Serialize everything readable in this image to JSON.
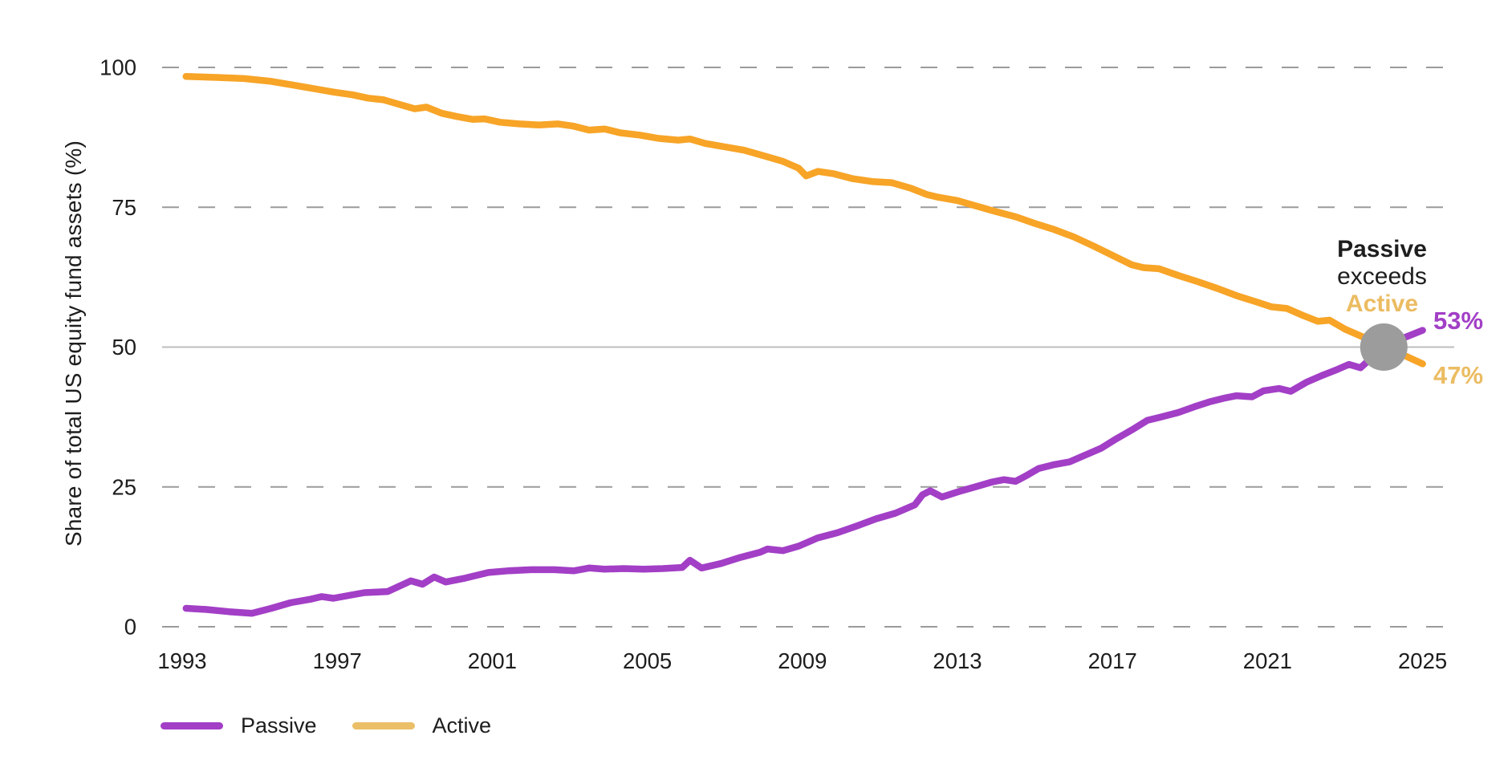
{
  "chart_data": {
    "type": "line",
    "title": "",
    "xlabel": "",
    "ylabel": "Share of total US equity fund assets (%)",
    "xlim": [
      1992.5,
      2025.8
    ],
    "ylim": [
      0,
      100
    ],
    "x_ticks": [
      "1993",
      "1997",
      "2001",
      "2005",
      "2009",
      "2013",
      "2017",
      "2021",
      "2025"
    ],
    "x_tick_years": [
      1993,
      1997,
      2001,
      2005,
      2009,
      2013,
      2017,
      2021,
      2025
    ],
    "y_ticks": [
      0,
      25,
      50,
      75,
      100
    ],
    "grid": "horizontal dashed at 0/25/75/100, solid light at 50",
    "legend_position": "bottom-left",
    "colors": {
      "passive_line": "#A23FC6",
      "active_line": "#F7A427",
      "active_tan": "#EBBC62",
      "grid_dashed": "#9B9B9B",
      "grid_mid_solid": "#BDBDBD",
      "axis_text": "#1d1d1d",
      "marker_gray": "#9C9C9C",
      "background": "#FFFFFF"
    },
    "series": [
      {
        "name": "Active",
        "color": "#F7A427",
        "points": [
          [
            1993.1,
            98.4
          ],
          [
            1993.9,
            98.2
          ],
          [
            1994.6,
            98.0
          ],
          [
            1995.3,
            97.5
          ],
          [
            1995.9,
            96.8
          ],
          [
            1996.4,
            96.2
          ],
          [
            1996.9,
            95.6
          ],
          [
            1997.4,
            95.1
          ],
          [
            1997.8,
            94.5
          ],
          [
            1998.2,
            94.2
          ],
          [
            1998.7,
            93.2
          ],
          [
            1999.0,
            92.6
          ],
          [
            1999.3,
            92.9
          ],
          [
            1999.7,
            91.8
          ],
          [
            2000.1,
            91.2
          ],
          [
            2000.5,
            90.7
          ],
          [
            2000.8,
            90.8
          ],
          [
            2001.2,
            90.2
          ],
          [
            2001.7,
            89.9
          ],
          [
            2002.2,
            89.7
          ],
          [
            2002.7,
            89.9
          ],
          [
            2003.1,
            89.5
          ],
          [
            2003.5,
            88.8
          ],
          [
            2003.9,
            89.0
          ],
          [
            2004.3,
            88.3
          ],
          [
            2004.8,
            87.9
          ],
          [
            2005.3,
            87.3
          ],
          [
            2005.8,
            87.0
          ],
          [
            2006.1,
            87.2
          ],
          [
            2006.5,
            86.4
          ],
          [
            2007.0,
            85.8
          ],
          [
            2007.5,
            85.2
          ],
          [
            2008.0,
            84.2
          ],
          [
            2008.5,
            83.2
          ],
          [
            2008.9,
            82.0
          ],
          [
            2009.1,
            80.6
          ],
          [
            2009.4,
            81.4
          ],
          [
            2009.8,
            81.0
          ],
          [
            2010.3,
            80.1
          ],
          [
            2010.8,
            79.6
          ],
          [
            2011.3,
            79.4
          ],
          [
            2011.8,
            78.4
          ],
          [
            2012.2,
            77.3
          ],
          [
            2012.5,
            76.8
          ],
          [
            2013.0,
            76.2
          ],
          [
            2013.5,
            75.2
          ],
          [
            2014.0,
            74.2
          ],
          [
            2014.5,
            73.3
          ],
          [
            2015.0,
            72.1
          ],
          [
            2015.5,
            71.0
          ],
          [
            2016.0,
            69.7
          ],
          [
            2016.5,
            68.1
          ],
          [
            2017.0,
            66.4
          ],
          [
            2017.5,
            64.7
          ],
          [
            2017.8,
            64.2
          ],
          [
            2018.2,
            64.0
          ],
          [
            2018.7,
            62.8
          ],
          [
            2019.2,
            61.7
          ],
          [
            2019.7,
            60.5
          ],
          [
            2020.2,
            59.2
          ],
          [
            2020.7,
            58.1
          ],
          [
            2021.1,
            57.2
          ],
          [
            2021.5,
            56.9
          ],
          [
            2021.9,
            55.7
          ],
          [
            2022.3,
            54.6
          ],
          [
            2022.6,
            54.8
          ],
          [
            2023.0,
            53.2
          ],
          [
            2023.5,
            51.7
          ],
          [
            2024.0,
            50.0
          ],
          [
            2024.5,
            48.6
          ],
          [
            2025.0,
            47.0
          ]
        ]
      },
      {
        "name": "Passive",
        "color": "#A23FC6",
        "points": [
          [
            1993.1,
            3.3
          ],
          [
            1993.6,
            3.1
          ],
          [
            1994.2,
            2.7
          ],
          [
            1994.8,
            2.4
          ],
          [
            1995.3,
            3.3
          ],
          [
            1995.8,
            4.3
          ],
          [
            1996.3,
            4.9
          ],
          [
            1996.6,
            5.4
          ],
          [
            1996.9,
            5.1
          ],
          [
            1997.3,
            5.6
          ],
          [
            1997.7,
            6.1
          ],
          [
            1998.3,
            6.3
          ],
          [
            1998.9,
            8.2
          ],
          [
            1999.2,
            7.6
          ],
          [
            1999.5,
            8.9
          ],
          [
            1999.8,
            8.0
          ],
          [
            2000.3,
            8.7
          ],
          [
            2000.9,
            9.7
          ],
          [
            2001.4,
            10.0
          ],
          [
            2002.0,
            10.2
          ],
          [
            2002.6,
            10.2
          ],
          [
            2003.1,
            10.0
          ],
          [
            2003.5,
            10.5
          ],
          [
            2003.9,
            10.3
          ],
          [
            2004.4,
            10.4
          ],
          [
            2004.9,
            10.3
          ],
          [
            2005.4,
            10.4
          ],
          [
            2005.9,
            10.6
          ],
          [
            2006.1,
            11.9
          ],
          [
            2006.4,
            10.5
          ],
          [
            2006.9,
            11.3
          ],
          [
            2007.4,
            12.4
          ],
          [
            2007.9,
            13.3
          ],
          [
            2008.1,
            13.9
          ],
          [
            2008.5,
            13.6
          ],
          [
            2008.9,
            14.4
          ],
          [
            2009.4,
            15.9
          ],
          [
            2009.9,
            16.8
          ],
          [
            2010.4,
            18.0
          ],
          [
            2010.9,
            19.3
          ],
          [
            2011.4,
            20.3
          ],
          [
            2011.9,
            21.8
          ],
          [
            2012.1,
            23.6
          ],
          [
            2012.3,
            24.3
          ],
          [
            2012.6,
            23.2
          ],
          [
            2013.1,
            24.3
          ],
          [
            2013.5,
            25.1
          ],
          [
            2013.9,
            25.9
          ],
          [
            2014.2,
            26.3
          ],
          [
            2014.5,
            26.0
          ],
          [
            2014.8,
            27.1
          ],
          [
            2015.1,
            28.3
          ],
          [
            2015.5,
            29.0
          ],
          [
            2015.9,
            29.5
          ],
          [
            2016.3,
            30.7
          ],
          [
            2016.7,
            31.9
          ],
          [
            2017.1,
            33.6
          ],
          [
            2017.5,
            35.2
          ],
          [
            2017.9,
            36.9
          ],
          [
            2018.2,
            37.4
          ],
          [
            2018.7,
            38.3
          ],
          [
            2019.1,
            39.3
          ],
          [
            2019.5,
            40.2
          ],
          [
            2019.9,
            40.9
          ],
          [
            2020.2,
            41.3
          ],
          [
            2020.6,
            41.1
          ],
          [
            2020.9,
            42.2
          ],
          [
            2021.3,
            42.6
          ],
          [
            2021.6,
            42.1
          ],
          [
            2022.0,
            43.7
          ],
          [
            2022.4,
            44.9
          ],
          [
            2022.8,
            46.0
          ],
          [
            2023.1,
            46.9
          ],
          [
            2023.4,
            46.3
          ],
          [
            2023.7,
            48.2
          ],
          [
            2024.0,
            50.0
          ],
          [
            2024.5,
            51.6
          ],
          [
            2025.0,
            53.0
          ]
        ]
      }
    ],
    "crossover": {
      "year": 2024.0,
      "value": 50,
      "marker": "gray-circle"
    },
    "annotation": {
      "line1": "Passive",
      "line2": "exceeds",
      "line3": "Active"
    },
    "end_labels": {
      "passive": "53%",
      "active": "47%"
    },
    "legend": [
      {
        "label": "Passive",
        "color": "#A23FC6"
      },
      {
        "label": "Active",
        "color": "#EBBE68"
      }
    ]
  }
}
